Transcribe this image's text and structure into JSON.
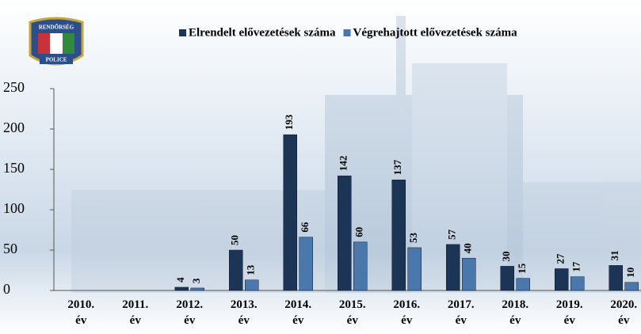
{
  "logo": {
    "top": "RENDŐRSÉG",
    "bottom": "POLICE"
  },
  "chart_data": {
    "type": "bar",
    "categories": [
      "2010. év",
      "2011. év",
      "2012. év",
      "2013. év",
      "2014. év",
      "2015. év",
      "2016. év",
      "2017. év",
      "2018. év",
      "2019. év",
      "2020. év"
    ],
    "series": [
      {
        "name": "Elrendelt elővezetések száma",
        "color": "#1c3557",
        "values": [
          null,
          null,
          4,
          50,
          193,
          142,
          137,
          57,
          30,
          27,
          31
        ]
      },
      {
        "name": "Végrehajtott elővezetések száma",
        "color": "#4a78ad",
        "values": [
          null,
          null,
          3,
          13,
          66,
          60,
          53,
          40,
          15,
          17,
          10
        ]
      }
    ],
    "ylim": [
      0,
      250
    ],
    "yticks": [
      0,
      50,
      100,
      150,
      200,
      250
    ],
    "grid": false,
    "legend": "top"
  }
}
